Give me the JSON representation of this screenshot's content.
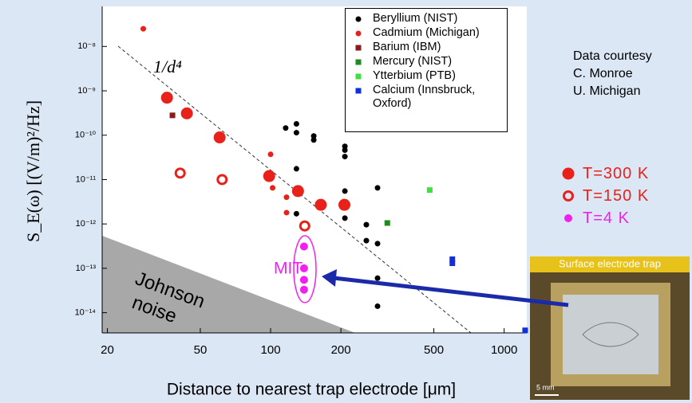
{
  "chart_data": {
    "type": "scatter",
    "xlabel": "Distance to nearest trap electrode [μm]",
    "ylabel": "S_E(ω)  [(V/m)²/Hz]",
    "xscale": "log",
    "yscale": "log",
    "xlim": [
      19,
      1250
    ],
    "ylim": [
      3.5e-15,
      8e-08
    ],
    "xticks": [
      20,
      50,
      100,
      200,
      500,
      1000
    ],
    "yticks": [
      {
        "value": 1e-08,
        "label": "10⁻⁸"
      },
      {
        "value": 1e-09,
        "label": "10⁻⁹"
      },
      {
        "value": 1e-10,
        "label": "10⁻¹⁰"
      },
      {
        "value": 1e-11,
        "label": "10⁻¹¹"
      },
      {
        "value": 1e-12,
        "label": "10⁻¹²"
      },
      {
        "value": 1e-13,
        "label": "10⁻¹³"
      },
      {
        "value": 1e-14,
        "label": "10⁻¹⁴"
      }
    ],
    "series": [
      {
        "name": "Beryllium (NIST)",
        "color": "#000000",
        "marker": "dot",
        "legend": "upper right",
        "x": [
          116,
          129,
          129,
          153,
          153,
          208,
          208,
          208,
          129,
          208,
          287,
          129,
          208,
          257,
          257,
          287,
          287,
          287
        ],
        "values": [
          1.45e-10,
          1.8e-10,
          1.14e-10,
          9.6e-11,
          7.8e-11,
          5.6e-11,
          4.6e-11,
          3.3e-11,
          1.75e-11,
          5.5e-12,
          6.5e-12,
          1.7e-12,
          1.35e-12,
          9.6e-13,
          4.2e-13,
          3.6e-13,
          6e-14,
          1.4e-14
        ]
      },
      {
        "name": "Cadmium (Michigan)",
        "color": "#e8211b",
        "marker": "dot",
        "legend": "upper right",
        "x": [
          28.5,
          100,
          102,
          117,
          117
        ],
        "values": [
          2.5e-08,
          3.7e-11,
          6.5e-12,
          4e-12,
          1.8e-12
        ]
      },
      {
        "name": "Barium (IBM)",
        "color": "#8b1a1a",
        "marker": "square",
        "legend": "upper right",
        "x": [
          38
        ],
        "values": [
          2.8e-10
        ]
      },
      {
        "name": "Mercury (NIST)",
        "color": "#1f8a1f",
        "marker": "square",
        "legend": "upper right",
        "x": [
          316
        ],
        "values": [
          1.05e-12
        ]
      },
      {
        "name": "Ytterbium (PTB)",
        "color": "#3de03d",
        "marker": "square",
        "legend": "upper right",
        "x": [
          480
        ],
        "values": [
          5.8e-12
        ]
      },
      {
        "name": "Calcium (Innsbruck, Oxford)",
        "color": "#1030e0",
        "marker": "square",
        "legend": "upper right",
        "x": [
          600,
          600,
          1230
        ],
        "values": [
          1.6e-13,
          1.3e-13,
          4e-15
        ]
      },
      {
        "name": "T=300 K",
        "color": "#e8211b",
        "marker": "big-dot",
        "legend": "right",
        "x": [
          36,
          43.8,
          60.5,
          98.6,
          131,
          164,
          207
        ],
        "values": [
          7e-10,
          3.1e-10,
          8.9e-11,
          1.2e-11,
          5.5e-12,
          2.7e-12,
          2.7e-12
        ]
      },
      {
        "name": "T=150 K",
        "color": "#e8211b",
        "marker": "ring",
        "legend": "right",
        "x": [
          41,
          62,
          140
        ],
        "values": [
          1.4e-11,
          1e-11,
          9e-13
        ]
      },
      {
        "name": "T=4 K",
        "color": "#f020f0",
        "marker": "dot-4k",
        "legend": "right",
        "x": [
          139,
          139,
          139,
          139
        ],
        "values": [
          3.1e-13,
          1e-13,
          5.5e-14,
          3.3e-14
        ]
      }
    ],
    "annotations": {
      "fit": "1/d⁴",
      "johnson_1": "Johnson",
      "johnson_2": "noise",
      "mit": "MIT",
      "courtesy": [
        "Data courtesy",
        "C. Monroe",
        "U. Michigan"
      ]
    },
    "inset": {
      "title": "Surface electrode trap",
      "scale": "5 mm"
    }
  }
}
